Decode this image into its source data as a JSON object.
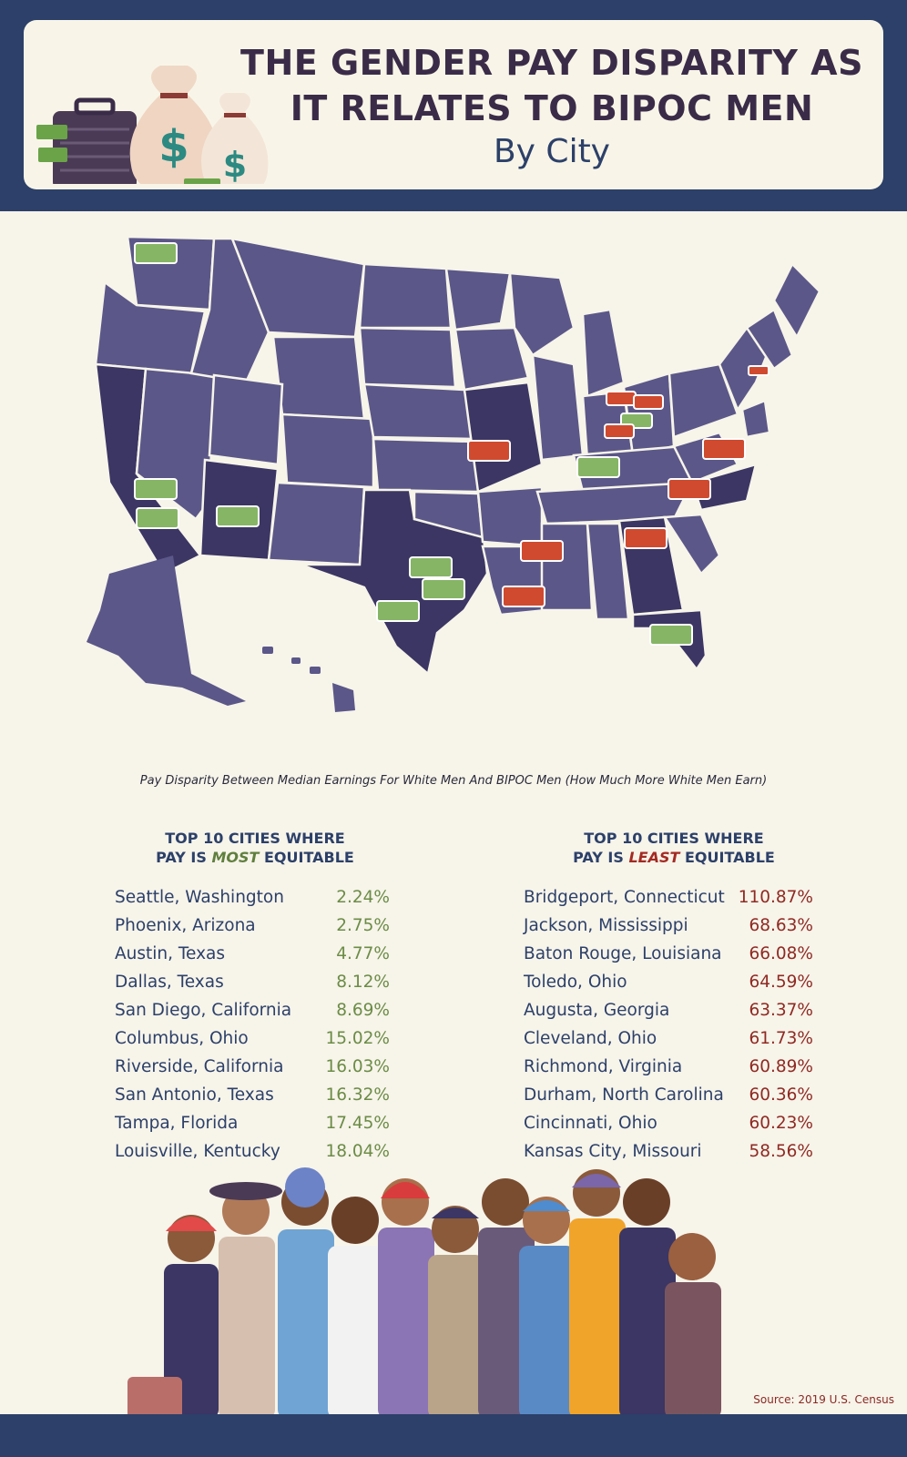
{
  "header": {
    "title_line1": "THE GENDER PAY DISPARITY AS",
    "title_line2": "IT RELATES TO BIPOC MEN",
    "subtitle": "By City"
  },
  "map": {
    "caption": "Pay Disparity Between Median Earnings For White Men And BIPOC Men (How Much More White Men Earn)",
    "icon_names": [
      "money-bag-icon",
      "briefcase-icon",
      "dollar-bill-icon"
    ],
    "colors": {
      "state_fill": "#5b5788",
      "state_dark": "#3b3663",
      "bill_green": "#86b565",
      "bill_red": "#cf4a2f"
    }
  },
  "most_equitable": {
    "heading_line1": "TOP 10 CITIES WHERE",
    "heading_pre": "PAY IS ",
    "heading_emph": "MOST",
    "heading_post": " EQUITABLE",
    "rows": [
      {
        "city": "Seattle, Washington",
        "pct": "2.24%"
      },
      {
        "city": "Phoenix, Arizona",
        "pct": "2.75%"
      },
      {
        "city": "Austin, Texas",
        "pct": "4.77%"
      },
      {
        "city": "Dallas, Texas",
        "pct": "8.12%"
      },
      {
        "city": "San Diego, California",
        "pct": "8.69%"
      },
      {
        "city": "Columbus, Ohio",
        "pct": "15.02%"
      },
      {
        "city": "Riverside, California",
        "pct": "16.03%"
      },
      {
        "city": "San Antonio, Texas",
        "pct": "16.32%"
      },
      {
        "city": "Tampa, Florida",
        "pct": "17.45%"
      },
      {
        "city": "Louisville, Kentucky",
        "pct": "18.04%"
      }
    ]
  },
  "least_equitable": {
    "heading_line1": "TOP 10 CITIES WHERE",
    "heading_pre": "PAY IS ",
    "heading_emph": "LEAST",
    "heading_post": " EQUITABLE",
    "rows": [
      {
        "city": "Bridgeport, Connecticut",
        "pct": "110.87%"
      },
      {
        "city": "Jackson, Mississippi",
        "pct": "68.63%"
      },
      {
        "city": "Baton Rouge, Louisiana",
        "pct": "66.08%"
      },
      {
        "city": "Toledo, Ohio",
        "pct": "64.59%"
      },
      {
        "city": "Augusta, Georgia",
        "pct": "63.37%"
      },
      {
        "city": "Cleveland, Ohio",
        "pct": "61.73%"
      },
      {
        "city": "Richmond, Virginia",
        "pct": "60.89%"
      },
      {
        "city": "Durham, North Carolina",
        "pct": "60.36%"
      },
      {
        "city": "Cincinnati, Ohio",
        "pct": "60.23%"
      },
      {
        "city": "Kansas City, Missouri",
        "pct": "58.56%"
      }
    ]
  },
  "footer": {
    "source": "Source: 2019 U.S. Census"
  }
}
